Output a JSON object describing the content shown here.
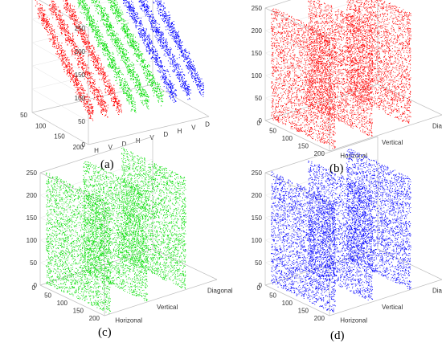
{
  "chart_data": [
    {
      "type": "scatter",
      "caption": "(a)",
      "ylim": [
        0,
        250
      ],
      "x_ticks": [
        "50",
        "100",
        "150",
        "200"
      ],
      "z_ticks": [
        "0",
        "50",
        "100",
        "150",
        "200",
        "250"
      ],
      "category_ticks": [
        "H",
        "V",
        "D",
        "H",
        "V",
        "D",
        "H",
        "V",
        "D"
      ],
      "series": [
        {
          "color": "#ff0000",
          "planes": [
            "H",
            "V",
            "D"
          ]
        },
        {
          "color": "#00dd00",
          "planes": [
            "H",
            "V",
            "D"
          ]
        },
        {
          "color": "#0000ff",
          "planes": [
            "H",
            "V",
            "D"
          ]
        }
      ],
      "grid": true
    },
    {
      "type": "scatter",
      "caption": "(b)",
      "ylim": [
        0,
        250
      ],
      "x_ticks": [
        "0",
        "50",
        "100",
        "150",
        "200"
      ],
      "z_ticks": [
        "0",
        "50",
        "100",
        "150",
        "200",
        "250"
      ],
      "category_ticks": [
        "Horizonal",
        "Vertical",
        "Diagonal"
      ],
      "series": [
        {
          "color": "#ff0000"
        }
      ],
      "grid": true
    },
    {
      "type": "scatter",
      "caption": "(c)",
      "ylim": [
        0,
        250
      ],
      "x_ticks": [
        "0",
        "50",
        "100",
        "150",
        "200"
      ],
      "z_ticks": [
        "0",
        "50",
        "100",
        "150",
        "200",
        "250"
      ],
      "category_ticks": [
        "Horizonal",
        "Vertical",
        "Diagonal"
      ],
      "series": [
        {
          "color": "#00dd00"
        }
      ],
      "grid": true
    },
    {
      "type": "scatter",
      "caption": "(d)",
      "ylim": [
        0,
        250
      ],
      "x_ticks": [
        "0",
        "50",
        "100",
        "150",
        "200"
      ],
      "z_ticks": [
        "0",
        "50",
        "100",
        "150",
        "200",
        "250"
      ],
      "category_ticks": [
        "Horizonal",
        "Vertical",
        "Diagonal"
      ],
      "series": [
        {
          "color": "#0000ff"
        }
      ],
      "grid": true
    }
  ]
}
